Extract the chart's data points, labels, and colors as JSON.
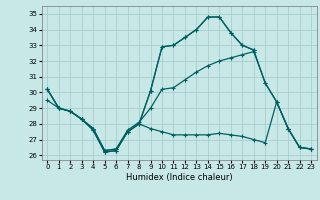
{
  "xlabel": "Humidex (Indice chaleur)",
  "xlim": [
    -0.5,
    23.5
  ],
  "ylim": [
    25.7,
    35.5
  ],
  "yticks": [
    26,
    27,
    28,
    29,
    30,
    31,
    32,
    33,
    34,
    35
  ],
  "xticks": [
    0,
    1,
    2,
    3,
    4,
    5,
    6,
    7,
    8,
    9,
    10,
    11,
    12,
    13,
    14,
    15,
    16,
    17,
    18,
    19,
    20,
    21,
    22,
    23
  ],
  "bg_color": "#c8e8e8",
  "grid_color": "#a8cccc",
  "line_color": "#006060",
  "lines": [
    [
      30.2,
      29.0,
      28.8,
      28.3,
      27.6,
      26.2,
      26.3,
      27.5,
      28.0,
      30.1,
      32.9,
      33.0,
      33.5,
      34.0,
      34.8,
      34.8,
      33.8,
      33.0,
      32.7,
      null,
      null,
      null,
      null,
      null
    ],
    [
      30.2,
      29.0,
      28.8,
      28.3,
      27.6,
      26.2,
      26.3,
      27.5,
      28.0,
      30.1,
      32.9,
      33.0,
      33.5,
      34.0,
      34.8,
      34.8,
      33.8,
      33.0,
      32.7,
      30.6,
      29.4,
      27.7,
      26.5,
      26.4
    ],
    [
      30.2,
      29.0,
      28.8,
      28.3,
      27.7,
      26.3,
      26.4,
      27.6,
      28.1,
      29.0,
      30.2,
      30.3,
      30.8,
      31.3,
      31.7,
      32.0,
      32.2,
      32.4,
      32.6,
      30.6,
      29.4,
      27.7,
      26.5,
      26.4
    ],
    [
      29.5,
      29.0,
      28.8,
      28.3,
      27.7,
      26.3,
      26.4,
      27.5,
      28.0,
      27.7,
      27.5,
      27.3,
      27.3,
      27.3,
      27.3,
      27.4,
      27.3,
      27.2,
      27.0,
      26.8,
      29.4,
      27.7,
      26.5,
      26.4
    ]
  ]
}
